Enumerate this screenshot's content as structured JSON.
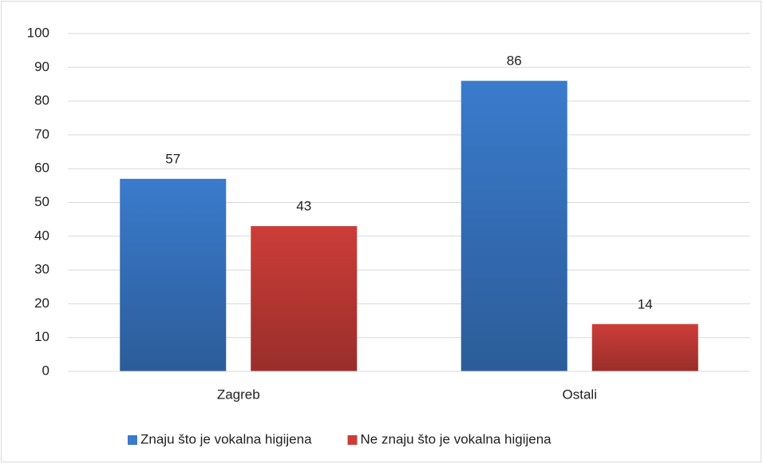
{
  "chart_data": {
    "type": "bar",
    "categories": [
      "Zagreb",
      "Ostali"
    ],
    "series": [
      {
        "name": "Znaju što je vokalna higijena",
        "color": "#3a7bcc",
        "values": [
          57,
          86
        ]
      },
      {
        "name": "Ne znaju što je vokalna higijena",
        "color": "#cc3d38",
        "values": [
          43,
          14
        ]
      }
    ],
    "ylim": [
      0,
      100
    ],
    "yticks": [
      0,
      10,
      20,
      30,
      40,
      50,
      60,
      70,
      80,
      90,
      100
    ],
    "grid": true,
    "legend": "bottom",
    "data_labels": true
  }
}
